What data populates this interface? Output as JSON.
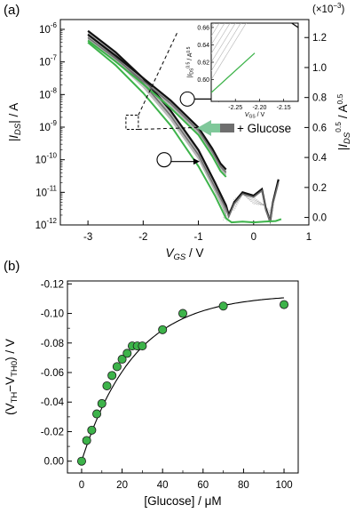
{
  "chart_data": [
    {
      "panel_label": "(a)",
      "type": "line",
      "xlabel_main": "V",
      "xlabel_sub": "GS",
      "xlabel_unit": " / V",
      "ylabel_left_main": "|I",
      "ylabel_left_sub": "DS",
      "ylabel_left_unit": "| / A",
      "ylabel_right_main": "|I",
      "ylabel_right_sub": "DS",
      "ylabel_right_sup": "0.5",
      "ylabel_right_unit": " / A",
      "ylabel_right_unit_sup": "0.5",
      "right_axis_multiplier": "(×10",
      "right_axis_multiplier_exp": "−3",
      "right_axis_multiplier_close": ")",
      "annotation": "+ Glucose",
      "xlim": [
        -3.5,
        1
      ],
      "x_ticks": [
        "-3",
        "-2",
        "-1",
        "0",
        "1"
      ],
      "x_tick_values": [
        -3,
        -2,
        -1,
        0,
        1
      ],
      "y_left_scale": "log",
      "y_left_lim_exp": [
        -12,
        -5.7
      ],
      "y_left_ticks": [
        {
          "base": "10",
          "exp": "-6",
          "e": -6
        },
        {
          "base": "10",
          "exp": "-7",
          "e": -7
        },
        {
          "base": "10",
          "exp": "-8",
          "e": -8
        },
        {
          "base": "10",
          "exp": "-9",
          "e": -9
        },
        {
          "base": "10",
          "exp": "-10",
          "e": -10
        },
        {
          "base": "10",
          "exp": "-11",
          "e": -11
        },
        {
          "base": "10",
          "exp": "-12",
          "e": -12
        }
      ],
      "y_right_lim": [
        -0.05,
        1.32
      ],
      "y_right_ticks": [
        "0.0",
        "0.2",
        "0.4",
        "0.6",
        "0.8",
        "1.0",
        "1.2"
      ],
      "y_right_tick_values": [
        0,
        0.2,
        0.4,
        0.6,
        0.8,
        1.0,
        1.2
      ],
      "log_series": [
        {
          "color": "#111111",
          "width": 2.2,
          "points": [
            [
              -3,
              -6.05
            ],
            [
              -2.5,
              -6.7
            ],
            [
              -2,
              -7.5
            ],
            [
              -1.5,
              -8.5
            ],
            [
              -1,
              -9.7
            ],
            [
              -0.7,
              -10.7
            ],
            [
              -0.5,
              -11.4
            ],
            [
              -0.45,
              -11.7
            ],
            [
              -0.35,
              -11.3
            ],
            [
              -0.2,
              -11.0
            ],
            [
              0,
              -11.1
            ],
            [
              0.15,
              -10.9
            ],
            [
              0.22,
              -11.5
            ],
            [
              0.3,
              -11.9
            ],
            [
              0.35,
              -11.3
            ],
            [
              0.45,
              -10.6
            ]
          ]
        },
        {
          "color": "#707070",
          "width": 1.6,
          "points": [
            [
              -3,
              -6.15
            ],
            [
              -2.5,
              -6.85
            ],
            [
              -2,
              -7.65
            ],
            [
              -1.5,
              -8.65
            ],
            [
              -1,
              -9.85
            ],
            [
              -0.7,
              -10.85
            ],
            [
              -0.5,
              -11.5
            ],
            [
              -0.45,
              -11.75
            ],
            [
              -0.35,
              -11.35
            ],
            [
              -0.2,
              -11.05
            ],
            [
              0,
              -11.15
            ],
            [
              0.15,
              -10.95
            ],
            [
              0.22,
              -11.55
            ],
            [
              0.3,
              -11.9
            ],
            [
              0.35,
              -11.35
            ],
            [
              0.45,
              -10.7
            ]
          ]
        },
        {
          "color": "#3db34a",
          "width": 2.0,
          "points": [
            [
              -3,
              -6.4
            ],
            [
              -2.5,
              -7.1
            ],
            [
              -2,
              -7.95
            ],
            [
              -1.5,
              -8.95
            ],
            [
              -1,
              -10.2
            ],
            [
              -0.7,
              -11.1
            ],
            [
              -0.5,
              -11.8
            ],
            [
              -0.4,
              -11.92
            ],
            [
              -0.2,
              -11.9
            ],
            [
              0,
              -11.92
            ],
            [
              0.2,
              -11.9
            ],
            [
              0.4,
              -11.88
            ],
            [
              0.5,
              -11.82
            ]
          ]
        }
      ],
      "sqrt_series": [
        {
          "color": "#111111",
          "width": 2.2,
          "points": [
            [
              -3,
              1.22
            ],
            [
              -2.5,
              1.08
            ],
            [
              -2,
              0.93
            ],
            [
              -1.5,
              0.78
            ],
            [
              -1,
              0.6
            ],
            [
              -0.75,
              0.46
            ],
            [
              -0.6,
              0.36
            ],
            [
              -0.5,
              0.32
            ]
          ]
        },
        {
          "color": "#707070",
          "width": 1.6,
          "points": [
            [
              -3,
              1.2
            ],
            [
              -2.5,
              1.06
            ],
            [
              -2,
              0.91
            ],
            [
              -1.5,
              0.76
            ],
            [
              -1,
              0.58
            ],
            [
              -0.75,
              0.44
            ],
            [
              -0.6,
              0.34
            ],
            [
              -0.5,
              0.3
            ]
          ]
        },
        {
          "color": "#3db34a",
          "width": 2.0,
          "points": [
            [
              -3,
              1.18
            ],
            [
              -2.5,
              1.04
            ],
            [
              -2,
              0.89
            ],
            [
              -1.5,
              0.73
            ],
            [
              -1,
              0.55
            ],
            [
              -0.75,
              0.41
            ],
            [
              -0.6,
              0.31
            ],
            [
              -0.5,
              0.27
            ]
          ]
        }
      ],
      "inset": {
        "xlabel_main": "V",
        "xlabel_sub": "GS",
        "xlabel_unit": " / V",
        "ylabel": "|I",
        "ylabel_sub": "DS",
        "ylabel_sup": "0.5",
        "ylabel_unit": " / A",
        "ylabel_unit_sup": "0.5",
        "xlim": [
          -2.3,
          -2.12
        ],
        "x_ticks": [
          "-2.25",
          "-2.20",
          "-2.15"
        ],
        "x_tick_values": [
          -2.25,
          -2.2,
          -2.15
        ],
        "ylim": [
          0.575,
          0.665
        ],
        "y_ticks": [
          "0.60",
          "0.62",
          "0.64",
          "0.66"
        ],
        "y_tick_values": [
          0.6,
          0.62,
          0.64,
          0.66
        ]
      }
    },
    {
      "panel_label": "(b)",
      "type": "scatter",
      "xlabel": "[Glucose] / μM",
      "ylabel_open": "(V",
      "ylabel_sub1": "TH",
      "ylabel_mid": "−V",
      "ylabel_sub2": "TH0",
      "ylabel_close": ") / V",
      "xlim": [
        -7,
        107
      ],
      "ylim": [
        0.008,
        -0.122
      ],
      "x_ticks": [
        "0",
        "20",
        "40",
        "60",
        "80",
        "100"
      ],
      "x_tick_values": [
        0,
        20,
        40,
        60,
        80,
        100
      ],
      "y_ticks": [
        "0.00",
        "-0.02",
        "-0.04",
        "-0.06",
        "-0.08",
        "-0.10",
        "-0.12"
      ],
      "y_tick_values": [
        0,
        -0.02,
        -0.04,
        -0.06,
        -0.08,
        -0.1,
        -0.12
      ],
      "x": [
        0,
        2.5,
        5,
        7.5,
        10,
        12.5,
        15,
        17.5,
        20,
        22.5,
        25,
        27.5,
        30,
        40,
        50,
        70,
        100
      ],
      "y": [
        0,
        -0.014,
        -0.021,
        -0.032,
        -0.039,
        -0.051,
        -0.058,
        -0.064,
        -0.069,
        -0.073,
        -0.078,
        -0.078,
        -0.078,
        -0.089,
        -0.1,
        -0.105,
        -0.106
      ],
      "point_color": "#3db34a",
      "fit": {
        "vmax": -0.113,
        "k": 0.058
      }
    }
  ]
}
